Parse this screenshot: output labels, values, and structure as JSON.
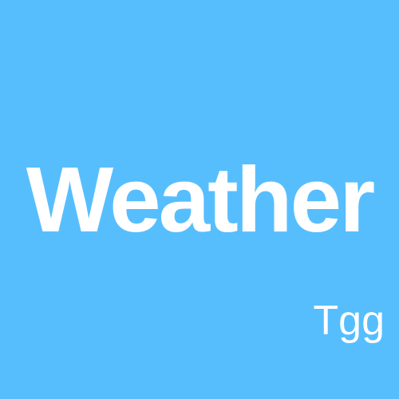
{
  "tile": {
    "title": "Weather",
    "caption": "Tgg",
    "background_color": "#57BEFE",
    "text_color": "#FFFFFF"
  }
}
